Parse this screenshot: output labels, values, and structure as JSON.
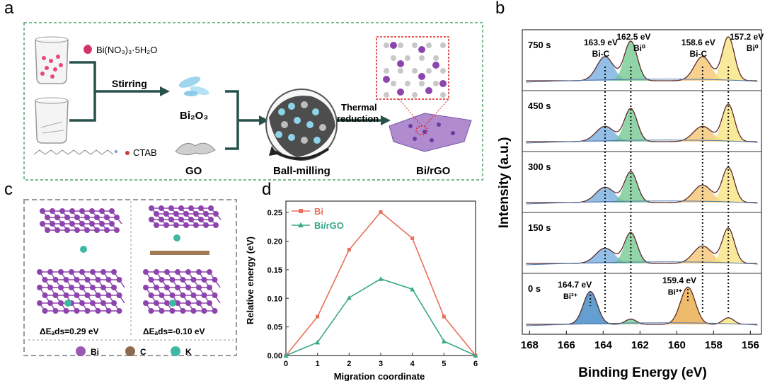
{
  "panel_labels": {
    "a": "a",
    "b": "b",
    "c": "c",
    "d": "d"
  },
  "panel_a": {
    "reagent1": "Bi(NO₃)₃·5H₂O",
    "reagent2": "CTAB",
    "step1": "Stirring",
    "intermediate": "Bi₂O₃",
    "go": "GO",
    "step2": "Ball-milling",
    "step3_line1": "Thermal",
    "step3_line2": "reduction",
    "product": "Bi/rGO"
  },
  "panel_c": {
    "eads_left": "ΔEₐds=0.29 eV",
    "eads_right": "ΔEₐds=-0.10 eV",
    "legend": [
      {
        "label": "Bi",
        "color": "#9b59b6"
      },
      {
        "label": "C",
        "color": "#8b6a4f"
      },
      {
        "label": "K",
        "color": "#3fb8a3"
      }
    ]
  },
  "panel_b": {
    "ylabel": "Intensity (a.u.)",
    "xlabel": "Binding Energy (eV)",
    "xticks": [
      "168",
      "166",
      "164",
      "162",
      "160",
      "158",
      "156"
    ],
    "times": [
      "750 s",
      "450 s",
      "300 s",
      "150 s",
      "0 s"
    ],
    "annotations_top": [
      {
        "line1": "163.9 eV",
        "line2": "Bi-C"
      },
      {
        "line1": "162.5 eV",
        "line2": "Bi⁰"
      },
      {
        "line1": "158.6 eV",
        "line2": "Bi-C"
      },
      {
        "line1": "157.2 eV",
        "line2": "Bi⁰"
      }
    ],
    "annotations_bottom": [
      {
        "line1": "164.7 eV",
        "line2": "Bi³⁺"
      },
      {
        "line1": "159.4 eV",
        "line2": "Bi³⁺"
      }
    ]
  },
  "chart_data": {
    "type": "line",
    "title": "",
    "xlabel": "Migration coordinate",
    "ylabel": "Relative energy (eV)",
    "x": [
      0,
      1,
      2,
      3,
      4,
      5,
      6
    ],
    "xlim": [
      0,
      6
    ],
    "ylim": [
      0,
      0.27
    ],
    "xticks": [
      "0",
      "1",
      "2",
      "3",
      "4",
      "5",
      "6"
    ],
    "yticks": [
      "0.00",
      "0.05",
      "0.10",
      "0.15",
      "0.20",
      "0.25"
    ],
    "legend_position": "top-left",
    "series": [
      {
        "name": "Bi",
        "color": "#e8705a",
        "marker": "square",
        "values": [
          0,
          0.068,
          0.185,
          0.251,
          0.205,
          0.068,
          0
        ]
      },
      {
        "name": "Bi/rGO",
        "color": "#3aa88a",
        "marker": "triangle",
        "values": [
          0,
          0.023,
          0.101,
          0.134,
          0.116,
          0.025,
          0
        ]
      }
    ]
  }
}
